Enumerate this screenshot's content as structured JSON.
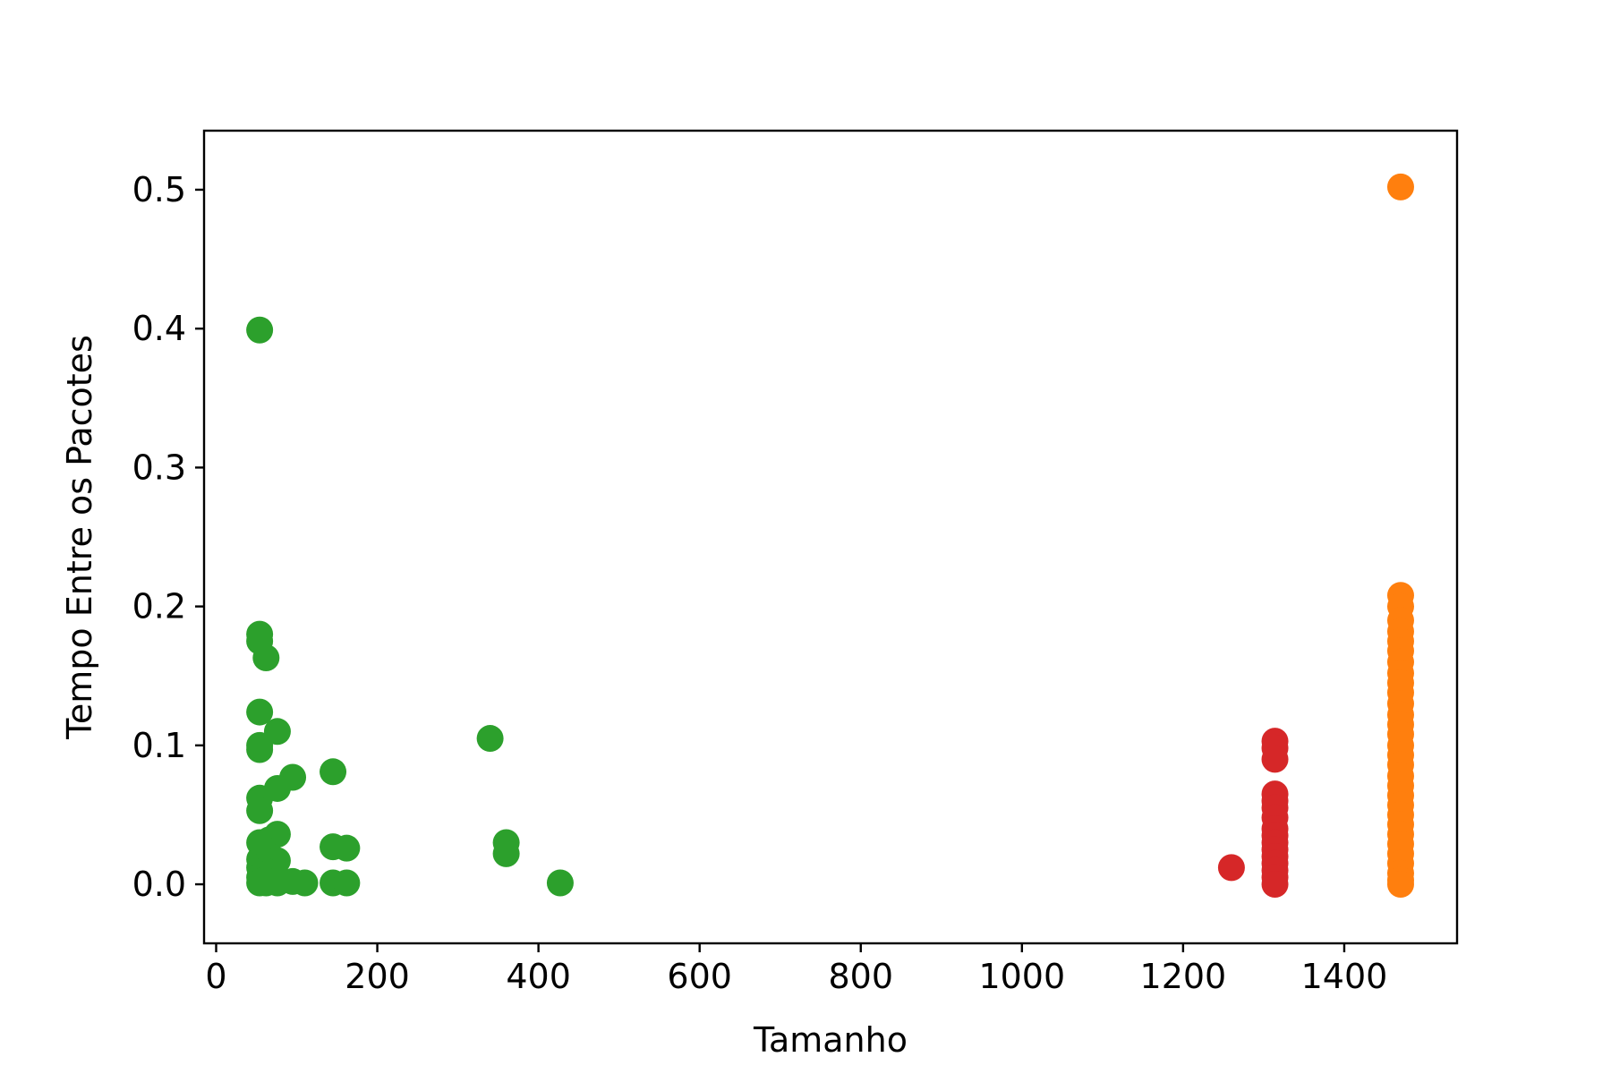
{
  "chart_data": {
    "type": "scatter",
    "title": "",
    "xlabel": "Tamanho",
    "ylabel": "Tempo Entre os Pacotes",
    "xlim": [
      -15,
      1540
    ],
    "ylim": [
      -0.0425,
      0.5425
    ],
    "xticks": [
      0,
      200,
      400,
      600,
      800,
      1000,
      1200,
      1400
    ],
    "xtick_labels": [
      "0",
      "200",
      "400",
      "600",
      "800",
      "1000",
      "1200",
      "1400"
    ],
    "yticks": [
      0.0,
      0.1,
      0.2,
      0.3,
      0.4,
      0.5
    ],
    "ytick_labels": [
      "0.0",
      "0.1",
      "0.2",
      "0.3",
      "0.4",
      "0.5"
    ],
    "grid": false,
    "legend": "none",
    "series": [
      {
        "color": "#2ca02c",
        "points": [
          [
            54,
            0.399
          ],
          [
            54,
            0.18
          ],
          [
            54,
            0.175
          ],
          [
            62,
            0.163
          ],
          [
            54,
            0.124
          ],
          [
            76,
            0.11
          ],
          [
            54,
            0.097
          ],
          [
            54,
            0.1
          ],
          [
            95,
            0.077
          ],
          [
            76,
            0.069
          ],
          [
            54,
            0.062
          ],
          [
            54,
            0.053
          ],
          [
            145,
            0.081
          ],
          [
            76,
            0.036
          ],
          [
            54,
            0.03
          ],
          [
            66,
            0.032
          ],
          [
            60,
            0.025
          ],
          [
            54,
            0.018
          ],
          [
            66,
            0.02
          ],
          [
            76,
            0.017
          ],
          [
            54,
            0.012
          ],
          [
            60,
            0.01
          ],
          [
            66,
            0.008
          ],
          [
            54,
            0.005
          ],
          [
            60,
            0.003
          ],
          [
            54,
            0.001
          ],
          [
            62,
            0.001
          ],
          [
            76,
            0.001
          ],
          [
            95,
            0.002
          ],
          [
            110,
            0.001
          ],
          [
            145,
            0.027
          ],
          [
            162,
            0.026
          ],
          [
            145,
            0.001
          ],
          [
            162,
            0.001
          ],
          [
            340,
            0.105
          ],
          [
            360,
            0.03
          ],
          [
            360,
            0.022
          ],
          [
            427,
            0.001
          ]
        ]
      },
      {
        "color": "#d62728",
        "points": [
          [
            1260,
            0.012
          ],
          [
            1314,
            0.103
          ],
          [
            1314,
            0.098
          ],
          [
            1314,
            0.09
          ],
          [
            1314,
            0.065
          ],
          [
            1314,
            0.06
          ],
          [
            1314,
            0.055
          ],
          [
            1314,
            0.048
          ],
          [
            1314,
            0.04
          ],
          [
            1314,
            0.035
          ],
          [
            1314,
            0.03
          ],
          [
            1314,
            0.025
          ],
          [
            1314,
            0.02
          ],
          [
            1314,
            0.015
          ],
          [
            1314,
            0.01
          ],
          [
            1314,
            0.005
          ],
          [
            1314,
            0.0
          ]
        ]
      },
      {
        "color": "#ff7f0e",
        "points": [
          [
            1470,
            0.502
          ],
          [
            1470,
            0.208
          ],
          [
            1470,
            0.2
          ],
          [
            1470,
            0.19
          ],
          [
            1470,
            0.182
          ],
          [
            1470,
            0.175
          ],
          [
            1470,
            0.168
          ],
          [
            1470,
            0.16
          ],
          [
            1470,
            0.152
          ],
          [
            1470,
            0.145
          ],
          [
            1470,
            0.138
          ],
          [
            1470,
            0.13
          ],
          [
            1470,
            0.122
          ],
          [
            1470,
            0.115
          ],
          [
            1470,
            0.108
          ],
          [
            1470,
            0.1
          ],
          [
            1470,
            0.093
          ],
          [
            1470,
            0.086
          ],
          [
            1470,
            0.078
          ],
          [
            1470,
            0.071
          ],
          [
            1470,
            0.064
          ],
          [
            1470,
            0.057
          ],
          [
            1470,
            0.05
          ],
          [
            1470,
            0.043
          ],
          [
            1470,
            0.036
          ],
          [
            1470,
            0.029
          ],
          [
            1470,
            0.022
          ],
          [
            1470,
            0.015
          ],
          [
            1470,
            0.008
          ],
          [
            1470,
            0.003
          ],
          [
            1470,
            0.0
          ]
        ]
      }
    ]
  }
}
